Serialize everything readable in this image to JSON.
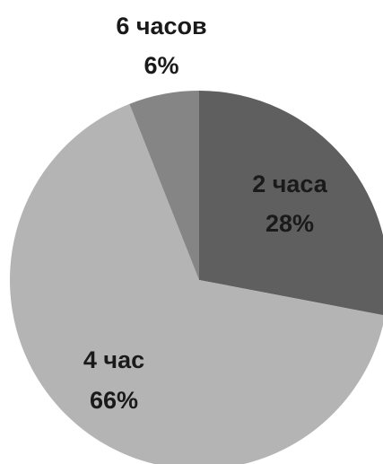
{
  "chart_data": {
    "type": "pie",
    "start_angle_deg": 0,
    "direction": "clockwise",
    "slices": [
      {
        "label": "2 часа",
        "percent_label": "28%",
        "value": 28,
        "color": "#5f5f5f"
      },
      {
        "label": "4 час",
        "percent_label": "66%",
        "value": 66,
        "color": "#b4b4b4"
      },
      {
        "label": "6 часов",
        "percent_label": "6%",
        "value": 6,
        "color": "#858585"
      }
    ]
  }
}
